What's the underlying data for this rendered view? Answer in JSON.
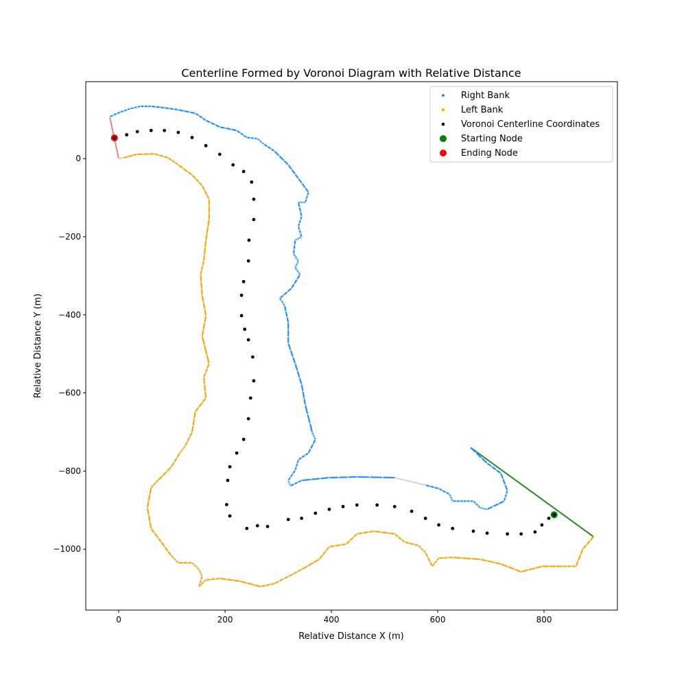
{
  "chart_data": {
    "type": "scatter",
    "title": "Centerline Formed by Voronoi Diagram with Relative Distance",
    "xlabel": "Relative Distance X (m)",
    "ylabel": "Relative Distance Y (m)",
    "xlim": [
      -62,
      938
    ],
    "ylim": [
      -1156,
      197
    ],
    "xticks": [
      0,
      200,
      400,
      600,
      800
    ],
    "yticks": [
      0,
      -200,
      -400,
      -600,
      -800,
      -1000
    ],
    "grid": false,
    "legend_position": "top-right",
    "colors": {
      "right_bank": "#1e90ff",
      "left_bank": "#ffa500",
      "centerline": "#000000",
      "start_node": "#008000",
      "end_node": "#ff0000",
      "start_line": "#228b22",
      "end_line": "#f08080",
      "gap_line": "#d3d3d3"
    },
    "series": [
      {
        "name": "Right Bank",
        "points": [
          [
            -17,
            107
          ],
          [
            3,
            119
          ],
          [
            22,
            128
          ],
          [
            41,
            134
          ],
          [
            61,
            134
          ],
          [
            86,
            130
          ],
          [
            112,
            125
          ],
          [
            144,
            116
          ],
          [
            164,
            98
          ],
          [
            190,
            81
          ],
          [
            222,
            72
          ],
          [
            241,
            54
          ],
          [
            261,
            51
          ],
          [
            273,
            37
          ],
          [
            293,
            19
          ],
          [
            319,
            -16
          ],
          [
            338,
            -51
          ],
          [
            357,
            -86
          ],
          [
            351,
            -112
          ],
          [
            338,
            -112
          ],
          [
            344,
            -148
          ],
          [
            338,
            -174
          ],
          [
            344,
            -200
          ],
          [
            332,
            -209
          ],
          [
            329,
            -244
          ],
          [
            338,
            -262
          ],
          [
            332,
            -279
          ],
          [
            341,
            -297
          ],
          [
            325,
            -332
          ],
          [
            303,
            -358
          ],
          [
            312,
            -376
          ],
          [
            319,
            -420
          ],
          [
            319,
            -473
          ],
          [
            332,
            -525
          ],
          [
            344,
            -578
          ],
          [
            351,
            -631
          ],
          [
            364,
            -701
          ],
          [
            370,
            -719
          ],
          [
            357,
            -754
          ],
          [
            338,
            -771
          ],
          [
            332,
            -798
          ],
          [
            319,
            -824
          ],
          [
            323,
            -838
          ],
          [
            344,
            -824
          ],
          [
            396,
            -817
          ],
          [
            448,
            -815
          ],
          [
            519,
            -817
          ]
        ]
      },
      {
        "name": "Right Bank",
        "points": [
          [
            577,
            -836
          ],
          [
            602,
            -845
          ],
          [
            622,
            -859
          ],
          [
            628,
            -877
          ],
          [
            648,
            -877
          ],
          [
            667,
            -877
          ],
          [
            680,
            -894
          ],
          [
            693,
            -898
          ],
          [
            725,
            -877
          ],
          [
            731,
            -850
          ],
          [
            719,
            -806
          ],
          [
            693,
            -780
          ],
          [
            662,
            -740
          ]
        ]
      },
      {
        "name": "Left Bank",
        "points": [
          [
            0,
            0
          ],
          [
            9,
            2
          ],
          [
            35,
            11
          ],
          [
            67,
            12
          ],
          [
            93,
            2
          ],
          [
            112,
            -16
          ],
          [
            138,
            -42
          ],
          [
            157,
            -69
          ],
          [
            170,
            -104
          ],
          [
            170,
            -156
          ],
          [
            164,
            -209
          ],
          [
            160,
            -262
          ],
          [
            154,
            -297
          ],
          [
            157,
            -350
          ],
          [
            164,
            -402
          ],
          [
            157,
            -455
          ],
          [
            170,
            -525
          ],
          [
            160,
            -560
          ],
          [
            164,
            -613
          ],
          [
            144,
            -648
          ],
          [
            138,
            -701
          ],
          [
            125,
            -736
          ],
          [
            115,
            -754
          ],
          [
            99,
            -789
          ],
          [
            74,
            -824
          ],
          [
            61,
            -842
          ],
          [
            54,
            -894
          ],
          [
            61,
            -947
          ],
          [
            80,
            -982
          ],
          [
            99,
            -1017
          ],
          [
            112,
            -1035
          ],
          [
            138,
            -1035
          ],
          [
            151,
            -1052
          ],
          [
            157,
            -1070
          ],
          [
            151,
            -1096
          ],
          [
            164,
            -1079
          ],
          [
            190,
            -1075
          ],
          [
            228,
            -1082
          ],
          [
            267,
            -1096
          ],
          [
            293,
            -1088
          ],
          [
            319,
            -1070
          ],
          [
            344,
            -1052
          ],
          [
            377,
            -1026
          ],
          [
            396,
            -994
          ],
          [
            428,
            -987
          ],
          [
            448,
            -961
          ],
          [
            480,
            -954
          ],
          [
            519,
            -961
          ],
          [
            538,
            -982
          ],
          [
            564,
            -991
          ],
          [
            577,
            -1009
          ],
          [
            590,
            -1044
          ],
          [
            602,
            -1023
          ],
          [
            628,
            -1021
          ],
          [
            680,
            -1026
          ],
          [
            719,
            -1038
          ],
          [
            757,
            -1058
          ],
          [
            796,
            -1044
          ],
          [
            835,
            -1044
          ],
          [
            860,
            -1044
          ],
          [
            873,
            -1000
          ],
          [
            893,
            -968
          ]
        ]
      },
      {
        "name": "Voronoi Centerline Coordinates",
        "points": [
          [
            819,
            -912
          ],
          [
            809,
            -921
          ],
          [
            796,
            -938
          ],
          [
            783,
            -956
          ],
          [
            757,
            -961
          ],
          [
            731,
            -961
          ],
          [
            693,
            -959
          ],
          [
            667,
            -954
          ],
          [
            628,
            -947
          ],
          [
            602,
            -938
          ],
          [
            577,
            -921
          ],
          [
            551,
            -903
          ],
          [
            519,
            -891
          ],
          [
            486,
            -887
          ],
          [
            448,
            -887
          ],
          [
            422,
            -891
          ],
          [
            396,
            -898
          ],
          [
            370,
            -908
          ],
          [
            344,
            -921
          ],
          [
            319,
            -924
          ],
          [
            280,
            -942
          ],
          [
            261,
            -940
          ],
          [
            241,
            -947
          ],
          [
            209,
            -915
          ],
          [
            203,
            -886
          ],
          [
            205,
            -824
          ],
          [
            209,
            -789
          ],
          [
            222,
            -754
          ],
          [
            235,
            -719
          ],
          [
            244,
            -666
          ],
          [
            248,
            -613
          ],
          [
            254,
            -569
          ],
          [
            252,
            -508
          ],
          [
            244,
            -464
          ],
          [
            237,
            -437
          ],
          [
            231,
            -402
          ],
          [
            231,
            -350
          ],
          [
            235,
            -315
          ],
          [
            244,
            -262
          ],
          [
            245,
            -209
          ],
          [
            254,
            -156
          ],
          [
            254,
            -104
          ],
          [
            250,
            -60
          ],
          [
            235,
            -33
          ],
          [
            215,
            -16
          ],
          [
            190,
            11
          ],
          [
            164,
            33
          ],
          [
            138,
            54
          ],
          [
            112,
            67
          ],
          [
            86,
            72
          ],
          [
            61,
            72
          ],
          [
            35,
            69
          ],
          [
            15,
            61
          ],
          [
            -8,
            53
          ]
        ]
      },
      {
        "name": "Starting Node",
        "points": [
          [
            819,
            -912
          ]
        ]
      },
      {
        "name": "Ending Node",
        "points": [
          [
            -8,
            53
          ]
        ]
      }
    ],
    "lines": {
      "start_line": [
        [
          662,
          -740
        ],
        [
          893,
          -968
        ]
      ],
      "end_line": [
        [
          -17,
          107
        ],
        [
          0,
          0
        ]
      ],
      "gap_line": [
        [
          519,
          -817
        ],
        [
          577,
          -836
        ]
      ]
    },
    "legend": [
      "Right Bank",
      "Left Bank",
      "Voronoi Centerline Coordinates",
      "Starting Node",
      "Ending Node"
    ]
  }
}
